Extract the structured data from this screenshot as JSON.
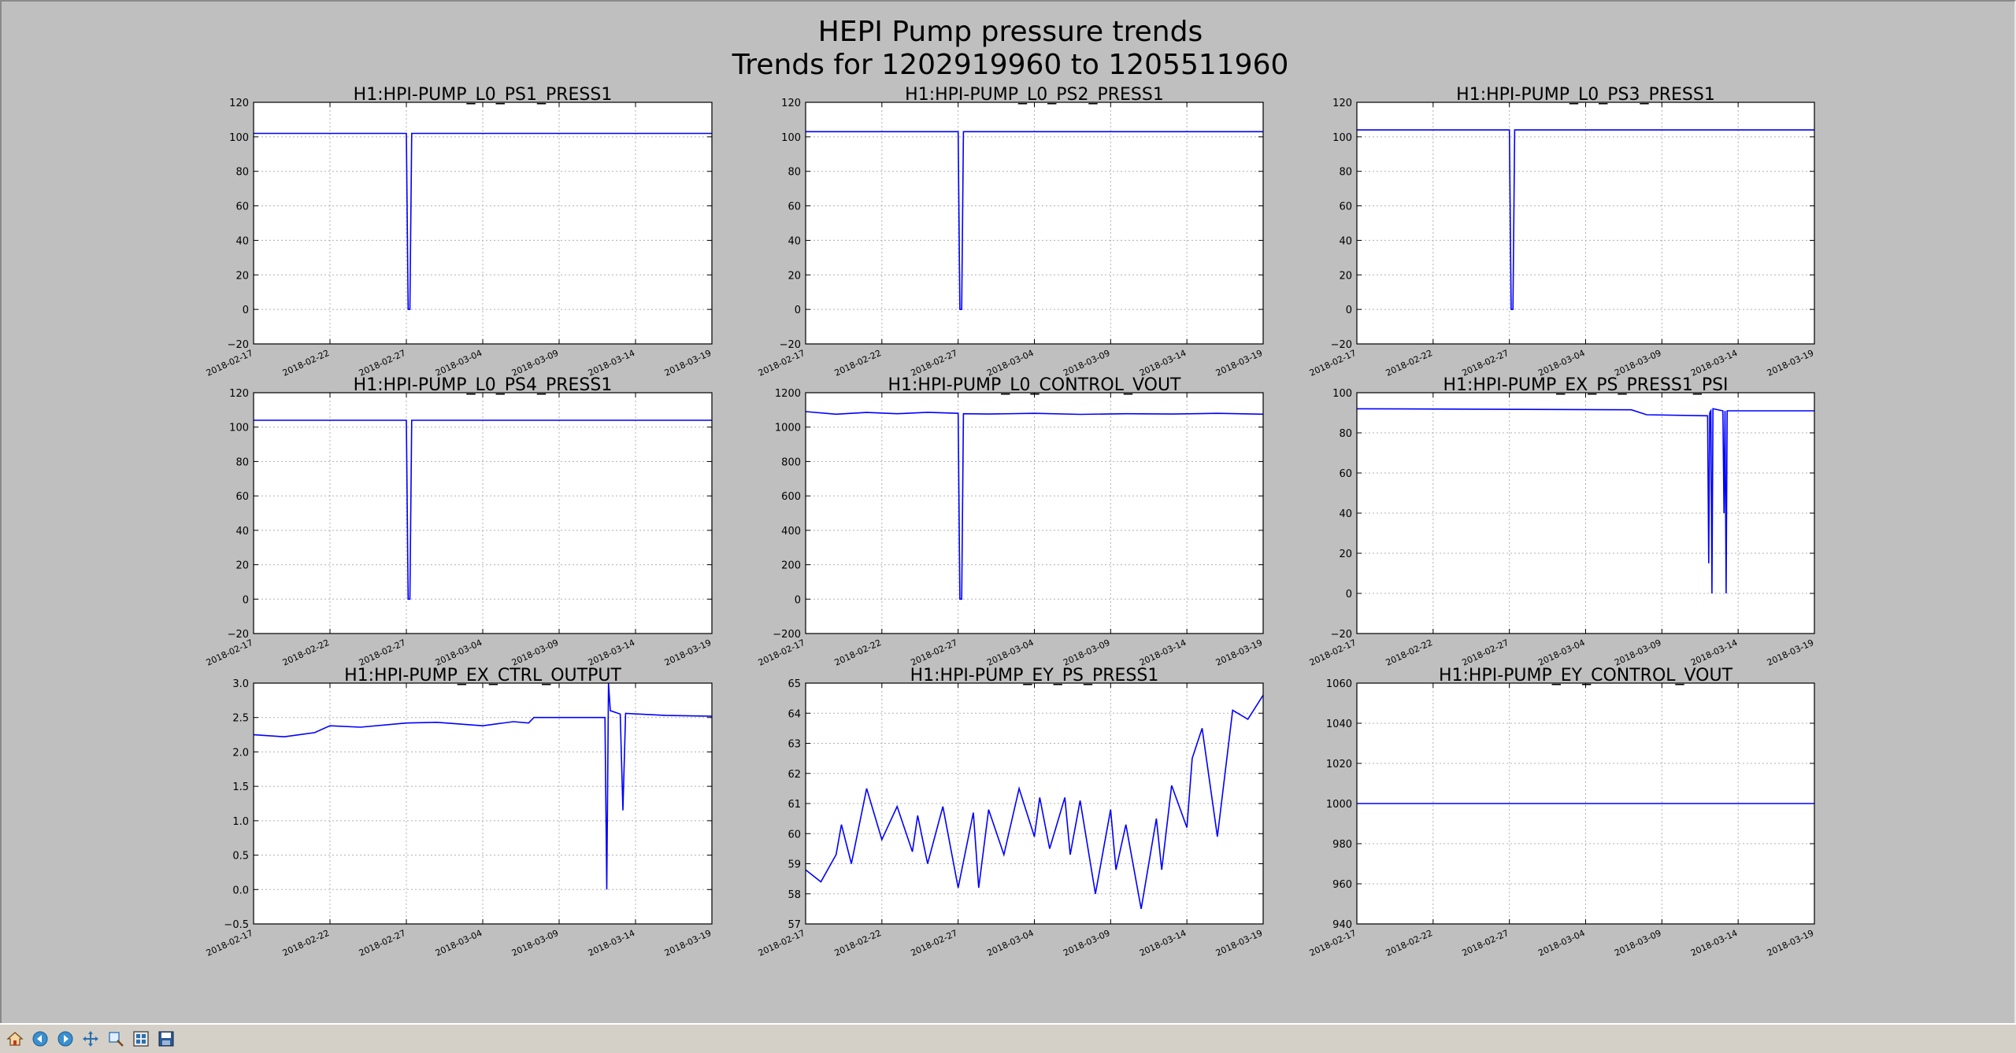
{
  "figure": {
    "title_line1": "HEPI Pump pressure trends",
    "title_line2": "Trends for 1202919960 to 1205511960"
  },
  "toolbar": {
    "buttons": [
      {
        "name": "home-icon",
        "label": "Home"
      },
      {
        "name": "back-icon",
        "label": "Back"
      },
      {
        "name": "forward-icon",
        "label": "Forward"
      },
      {
        "name": "pan-icon",
        "label": "Pan"
      },
      {
        "name": "zoom-icon",
        "label": "Zoom"
      },
      {
        "name": "configure-subplots-icon",
        "label": "Configure subplots"
      },
      {
        "name": "save-icon",
        "label": "Save"
      }
    ]
  },
  "chart_data": [
    {
      "type": "line",
      "title": "H1:HPI-PUMP_L0_PS1_PRESS1",
      "ylim": [
        -20,
        120
      ],
      "yticks": [
        -20,
        0,
        20,
        40,
        60,
        80,
        100,
        120
      ],
      "ytick_labels": [
        "−20",
        "0",
        "20",
        "40",
        "60",
        "80",
        "100",
        "120"
      ],
      "xlim": [
        "2018-02-17",
        "2018-03-19"
      ],
      "xticks": [
        "2018-02-17",
        "2018-02-22",
        "2018-02-27",
        "2018-03-04",
        "2018-03-09",
        "2018-03-14",
        "2018-03-19"
      ],
      "grid": true,
      "color": "#0000ff",
      "x": [
        "2018-02-17",
        "2018-02-27",
        "2018-02-27",
        "2018-02-27",
        "2018-02-27",
        "2018-03-19"
      ],
      "y": [
        102,
        102,
        0,
        0,
        102,
        102
      ]
    },
    {
      "type": "line",
      "title": "H1:HPI-PUMP_L0_PS2_PRESS1",
      "ylim": [
        -20,
        120
      ],
      "yticks": [
        -20,
        0,
        20,
        40,
        60,
        80,
        100,
        120
      ],
      "ytick_labels": [
        "−20",
        "0",
        "20",
        "40",
        "60",
        "80",
        "100",
        "120"
      ],
      "xlim": [
        "2018-02-17",
        "2018-03-19"
      ],
      "xticks": [
        "2018-02-17",
        "2018-02-22",
        "2018-02-27",
        "2018-03-04",
        "2018-03-09",
        "2018-03-14",
        "2018-03-19"
      ],
      "grid": true,
      "color": "#0000ff",
      "x": [
        "2018-02-17",
        "2018-02-27",
        "2018-02-27",
        "2018-02-27",
        "2018-02-27",
        "2018-03-19"
      ],
      "y": [
        103,
        103,
        0,
        0,
        103,
        103
      ]
    },
    {
      "type": "line",
      "title": "H1:HPI-PUMP_L0_PS3_PRESS1",
      "ylim": [
        -20,
        120
      ],
      "yticks": [
        -20,
        0,
        20,
        40,
        60,
        80,
        100,
        120
      ],
      "ytick_labels": [
        "−20",
        "0",
        "20",
        "40",
        "60",
        "80",
        "100",
        "120"
      ],
      "xlim": [
        "2018-02-17",
        "2018-03-19"
      ],
      "xticks": [
        "2018-02-17",
        "2018-02-22",
        "2018-02-27",
        "2018-03-04",
        "2018-03-09",
        "2018-03-14",
        "2018-03-19"
      ],
      "grid": true,
      "color": "#0000ff",
      "x": [
        "2018-02-17",
        "2018-02-27",
        "2018-02-27",
        "2018-02-27",
        "2018-02-27",
        "2018-03-19"
      ],
      "y": [
        104,
        104,
        0,
        0,
        104,
        104
      ]
    },
    {
      "type": "line",
      "title": "H1:HPI-PUMP_L0_PS4_PRESS1",
      "ylim": [
        -20,
        120
      ],
      "yticks": [
        -20,
        0,
        20,
        40,
        60,
        80,
        100,
        120
      ],
      "ytick_labels": [
        "−20",
        "0",
        "20",
        "40",
        "60",
        "80",
        "100",
        "120"
      ],
      "xlim": [
        "2018-02-17",
        "2018-03-19"
      ],
      "xticks": [
        "2018-02-17",
        "2018-02-22",
        "2018-02-27",
        "2018-03-04",
        "2018-03-09",
        "2018-03-14",
        "2018-03-19"
      ],
      "grid": true,
      "color": "#0000ff",
      "x": [
        "2018-02-17",
        "2018-02-27",
        "2018-02-27",
        "2018-02-27",
        "2018-02-27",
        "2018-03-19"
      ],
      "y": [
        104,
        104,
        0,
        0,
        104,
        104
      ]
    },
    {
      "type": "line",
      "title": "H1:HPI-PUMP_L0_CONTROL_VOUT",
      "ylim": [
        -200,
        1200
      ],
      "yticks": [
        -200,
        0,
        200,
        400,
        600,
        800,
        1000,
        1200
      ],
      "ytick_labels": [
        "−200",
        "0",
        "200",
        "400",
        "600",
        "800",
        "1000",
        "1200"
      ],
      "xlim": [
        "2018-02-17",
        "2018-03-19"
      ],
      "xticks": [
        "2018-02-17",
        "2018-02-22",
        "2018-02-27",
        "2018-03-04",
        "2018-03-09",
        "2018-03-14",
        "2018-03-19"
      ],
      "grid": true,
      "color": "#0000ff",
      "x": [
        "2018-02-17",
        "2018-02-19",
        "2018-02-21",
        "2018-02-23",
        "2018-02-25",
        "2018-02-27",
        "2018-02-27",
        "2018-02-27",
        "2018-02-27",
        "2018-03-01",
        "2018-03-04",
        "2018-03-07",
        "2018-03-10",
        "2018-03-13",
        "2018-03-16",
        "2018-03-19"
      ],
      "y": [
        1090,
        1075,
        1085,
        1078,
        1086,
        1080,
        0,
        0,
        1078,
        1076,
        1080,
        1074,
        1078,
        1076,
        1080,
        1075
      ]
    },
    {
      "type": "line",
      "title": "H1:HPI-PUMP_EX_PS_PRESS1_PSI",
      "ylim": [
        -20,
        100
      ],
      "yticks": [
        -20,
        0,
        20,
        40,
        60,
        80,
        100
      ],
      "ytick_labels": [
        "−20",
        "0",
        "20",
        "40",
        "60",
        "80",
        "100"
      ],
      "xlim": [
        "2018-02-17",
        "2018-03-19"
      ],
      "xticks": [
        "2018-02-17",
        "2018-02-22",
        "2018-02-27",
        "2018-03-04",
        "2018-03-09",
        "2018-03-14",
        "2018-03-19"
      ],
      "grid": true,
      "color": "#0000ff",
      "x": [
        "2018-02-17",
        "2018-03-07",
        "2018-03-08",
        "2018-03-12",
        "2018-03-12",
        "2018-03-12",
        "2018-03-12",
        "2018-03-12",
        "2018-03-12",
        "2018-03-13",
        "2018-03-13",
        "2018-03-13",
        "2018-03-13",
        "2018-03-13",
        "2018-03-13",
        "2018-03-19"
      ],
      "y": [
        92,
        91.5,
        89,
        88.5,
        15,
        90,
        91,
        0,
        92,
        91,
        40,
        91,
        0,
        91,
        91,
        91
      ]
    },
    {
      "type": "line",
      "title": "H1:HPI-PUMP_EX_CTRL_OUTPUT",
      "ylim": [
        -0.5,
        3.0
      ],
      "yticks": [
        -0.5,
        0.0,
        0.5,
        1.0,
        1.5,
        2.0,
        2.5,
        3.0
      ],
      "ytick_labels": [
        "−0.5",
        "0.0",
        "0.5",
        "1.0",
        "1.5",
        "2.0",
        "2.5",
        "3.0"
      ],
      "xlim": [
        "2018-02-17",
        "2018-03-19"
      ],
      "xticks": [
        "2018-02-17",
        "2018-02-22",
        "2018-02-27",
        "2018-03-04",
        "2018-03-09",
        "2018-03-14",
        "2018-03-19"
      ],
      "grid": true,
      "color": "#0000ff",
      "x": [
        "2018-02-17",
        "2018-02-19",
        "2018-02-21",
        "2018-02-22",
        "2018-02-24",
        "2018-02-27",
        "2018-03-01",
        "2018-03-04",
        "2018-03-06",
        "2018-03-07",
        "2018-03-07",
        "2018-03-12",
        "2018-03-12",
        "2018-03-12",
        "2018-03-12",
        "2018-03-13",
        "2018-03-13",
        "2018-03-13",
        "2018-03-16",
        "2018-03-19"
      ],
      "y": [
        2.25,
        2.22,
        2.28,
        2.38,
        2.36,
        2.42,
        2.43,
        2.38,
        2.44,
        2.42,
        2.5,
        2.5,
        0.0,
        3.0,
        2.6,
        2.55,
        1.15,
        2.56,
        2.53,
        2.52
      ]
    },
    {
      "type": "line",
      "title": "H1:HPI-PUMP_EY_PS_PRESS1",
      "ylim": [
        57,
        65
      ],
      "yticks": [
        57,
        58,
        59,
        60,
        61,
        62,
        63,
        64,
        65
      ],
      "ytick_labels": [
        "57",
        "58",
        "59",
        "60",
        "61",
        "62",
        "63",
        "64",
        "65"
      ],
      "xlim": [
        "2018-02-17",
        "2018-03-19"
      ],
      "xticks": [
        "2018-02-17",
        "2018-02-22",
        "2018-02-27",
        "2018-03-04",
        "2018-03-09",
        "2018-03-14",
        "2018-03-19"
      ],
      "grid": true,
      "color": "#0000ff",
      "x": [
        "2018-02-17",
        "2018-02-18",
        "2018-02-19",
        "2018-02-19",
        "2018-02-20",
        "2018-02-21",
        "2018-02-22",
        "2018-02-23",
        "2018-02-24",
        "2018-02-24",
        "2018-02-25",
        "2018-02-26",
        "2018-02-27",
        "2018-02-28",
        "2018-02-28",
        "2018-03-01",
        "2018-03-02",
        "2018-03-03",
        "2018-03-04",
        "2018-03-04",
        "2018-03-05",
        "2018-03-06",
        "2018-03-06",
        "2018-03-07",
        "2018-03-08",
        "2018-03-09",
        "2018-03-09",
        "2018-03-10",
        "2018-03-11",
        "2018-03-12",
        "2018-03-12",
        "2018-03-13",
        "2018-03-14",
        "2018-03-14",
        "2018-03-15",
        "2018-03-16",
        "2018-03-17",
        "2018-03-18",
        "2018-03-19"
      ],
      "y": [
        58.8,
        58.4,
        59.3,
        60.3,
        59.0,
        61.5,
        59.8,
        60.9,
        59.4,
        60.6,
        59.0,
        60.9,
        58.2,
        60.7,
        58.2,
        60.8,
        59.3,
        61.5,
        59.9,
        61.2,
        59.5,
        61.2,
        59.3,
        61.1,
        58.0,
        60.8,
        58.8,
        60.3,
        57.5,
        60.5,
        58.8,
        61.6,
        60.2,
        62.5,
        63.5,
        59.9,
        64.1,
        63.8,
        64.6
      ]
    },
    {
      "type": "line",
      "title": "H1:HPI-PUMP_EY_CONTROL_VOUT",
      "ylim": [
        940,
        1060
      ],
      "yticks": [
        940,
        960,
        980,
        1000,
        1020,
        1040,
        1060
      ],
      "ytick_labels": [
        "940",
        "960",
        "980",
        "1000",
        "1020",
        "1040",
        "1060"
      ],
      "xlim": [
        "2018-02-17",
        "2018-03-19"
      ],
      "xticks": [
        "2018-02-17",
        "2018-02-22",
        "2018-02-27",
        "2018-03-04",
        "2018-03-09",
        "2018-03-14",
        "2018-03-19"
      ],
      "grid": true,
      "color": "#0000ff",
      "x": [
        "2018-02-17",
        "2018-03-19"
      ],
      "y": [
        1000,
        1000
      ]
    }
  ]
}
